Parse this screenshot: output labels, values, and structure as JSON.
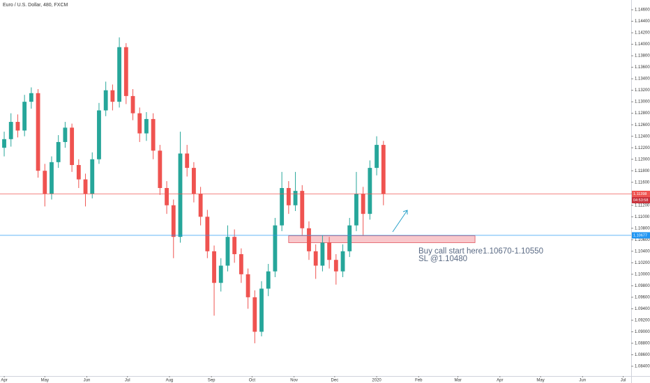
{
  "chart_data": {
    "type": "candlestick",
    "title": "Euro / U.S. Dollar, 480, FXCM",
    "x": [
      0,
      5,
      10,
      15,
      20,
      25,
      30,
      35,
      40,
      45,
      50,
      55,
      60,
      65,
      70,
      75,
      80,
      85,
      90,
      95,
      100,
      105,
      110,
      115,
      120,
      125,
      130,
      135,
      140,
      145,
      150,
      155,
      160,
      165,
      170,
      175,
      180,
      185,
      190,
      195,
      200,
      205,
      210,
      215,
      220,
      225,
      230,
      235,
      240,
      245,
      250,
      255,
      260,
      265,
      270,
      275,
      280
    ],
    "open": [
      1.122,
      1.1235,
      1.1265,
      1.125,
      1.13,
      1.1315,
      1.118,
      1.114,
      1.1195,
      1.123,
      1.1255,
      1.119,
      1.1165,
      1.114,
      1.12,
      1.1285,
      1.132,
      1.13,
      1.1395,
      1.131,
      1.128,
      1.1245,
      1.127,
      1.1215,
      1.115,
      1.112,
      1.1065,
      1.121,
      1.1185,
      1.114,
      1.11,
      1.104,
      1.0985,
      1.1015,
      1.1065,
      1.1035,
      1.1,
      1.096,
      1.09,
      1.0975,
      1.1005,
      1.1085,
      1.115,
      1.112,
      1.1145,
      1.108,
      1.104,
      1.1015,
      1.1055,
      1.1025,
      1.1005,
      1.104,
      1.1085,
      1.114,
      1.1105,
      1.1185,
      1.1225
    ],
    "high": [
      1.1248,
      1.128,
      1.1278,
      1.1312,
      1.1325,
      1.1322,
      1.1192,
      1.1205,
      1.1242,
      1.1265,
      1.1262,
      1.12,
      1.1175,
      1.1212,
      1.1298,
      1.1335,
      1.133,
      1.1412,
      1.1402,
      1.1322,
      1.129,
      1.1282,
      1.128,
      1.1225,
      1.1162,
      1.113,
      1.1248,
      1.1225,
      1.1195,
      1.1152,
      1.1112,
      1.105,
      1.1028,
      1.1085,
      1.1078,
      1.1045,
      1.101,
      1.0972,
      1.0988,
      1.1018,
      1.1098,
      1.1178,
      1.1162,
      1.1178,
      1.1155,
      1.1092,
      1.1052,
      1.1068,
      1.1065,
      1.1035,
      1.1052,
      1.1098,
      1.1178,
      1.1152,
      1.1198,
      1.124,
      1.1232
    ],
    "low": [
      1.1205,
      1.1222,
      1.1238,
      1.124,
      1.1288,
      1.1168,
      1.1118,
      1.113,
      1.1185,
      1.122,
      1.1178,
      1.115,
      1.1118,
      1.1132,
      1.1192,
      1.1275,
      1.1285,
      1.129,
      1.1296,
      1.1268,
      1.123,
      1.1232,
      1.12,
      1.1138,
      1.1105,
      1.1028,
      1.1055,
      1.117,
      1.1125,
      1.1085,
      1.1028,
      1.0928,
      1.097,
      1.1005,
      1.102,
      1.0985,
      1.094,
      1.088,
      1.0892,
      1.0962,
      1.0995,
      1.1075,
      1.1105,
      1.111,
      1.1068,
      1.1025,
      1.0992,
      1.1005,
      1.101,
      1.0982,
      1.0995,
      1.103,
      1.1075,
      1.1068,
      1.1095,
      1.1172,
      1.112
    ],
    "close": [
      1.1235,
      1.1265,
      1.125,
      1.13,
      1.1315,
      1.118,
      1.114,
      1.1195,
      1.123,
      1.1255,
      1.119,
      1.1165,
      1.114,
      1.12,
      1.1285,
      1.132,
      1.13,
      1.1395,
      1.131,
      1.128,
      1.1245,
      1.127,
      1.1215,
      1.115,
      1.112,
      1.1065,
      1.121,
      1.1185,
      1.114,
      1.11,
      1.104,
      1.0985,
      1.1015,
      1.1065,
      1.1035,
      1.1,
      1.096,
      1.09,
      1.0975,
      1.1005,
      1.1085,
      1.115,
      1.112,
      1.1145,
      1.108,
      1.104,
      1.1015,
      1.1055,
      1.1025,
      1.1005,
      1.104,
      1.1085,
      1.114,
      1.1105,
      1.1185,
      1.1225,
      1.114
    ],
    "up_color": "#26a69a",
    "down_color": "#ef5350",
    "xlim": [
      -3.1,
      462.9
    ],
    "ylim": [
      1.0823,
      1.1477
    ],
    "grid": false,
    "xticks": [
      {
        "value": 0,
        "label": "Apr"
      },
      {
        "value": 30,
        "label": "May"
      },
      {
        "value": 61,
        "label": "Jun"
      },
      {
        "value": 91,
        "label": "Jul"
      },
      {
        "value": 122,
        "label": "Aug"
      },
      {
        "value": 153,
        "label": "Sep"
      },
      {
        "value": 183,
        "label": "Oct"
      },
      {
        "value": 214,
        "label": "Nov"
      },
      {
        "value": 244,
        "label": "Dec"
      },
      {
        "value": 275,
        "label": "2020"
      },
      {
        "value": 306,
        "label": "Feb"
      },
      {
        "value": 335,
        "label": "Mar"
      },
      {
        "value": 366,
        "label": "Apr"
      },
      {
        "value": 396,
        "label": "May"
      },
      {
        "value": 427,
        "label": "Jun"
      },
      {
        "value": 457,
        "label": "Jul"
      }
    ],
    "yticks": [
      {
        "value": 1.084,
        "label": "1.08400"
      },
      {
        "value": 1.086,
        "label": "1.08600"
      },
      {
        "value": 1.088,
        "label": "1.08800"
      },
      {
        "value": 1.09,
        "label": "1.09000"
      },
      {
        "value": 1.092,
        "label": "1.09200"
      },
      {
        "value": 1.094,
        "label": "1.09400"
      },
      {
        "value": 1.096,
        "label": "1.09600"
      },
      {
        "value": 1.098,
        "label": "1.09800"
      },
      {
        "value": 1.1,
        "label": "1.10000"
      },
      {
        "value": 1.102,
        "label": "1.10200"
      },
      {
        "value": 1.104,
        "label": "1.10400"
      },
      {
        "value": 1.106,
        "label": "1.10600"
      },
      {
        "value": 1.108,
        "label": "1.10800"
      },
      {
        "value": 1.11,
        "label": "1.11000"
      },
      {
        "value": 1.112,
        "label": "1.11200"
      },
      {
        "value": 1.114,
        "label": "1.11400"
      },
      {
        "value": 1.116,
        "label": "1.11600"
      },
      {
        "value": 1.118,
        "label": "1.11800"
      },
      {
        "value": 1.12,
        "label": "1.12000"
      },
      {
        "value": 1.122,
        "label": "1.12200"
      },
      {
        "value": 1.124,
        "label": "1.12400"
      },
      {
        "value": 1.126,
        "label": "1.12600"
      },
      {
        "value": 1.128,
        "label": "1.12800"
      },
      {
        "value": 1.13,
        "label": "1.13000"
      },
      {
        "value": 1.132,
        "label": "1.13200"
      },
      {
        "value": 1.134,
        "label": "1.13400"
      },
      {
        "value": 1.136,
        "label": "1.13600"
      },
      {
        "value": 1.138,
        "label": "1.13800"
      },
      {
        "value": 1.14,
        "label": "1.14000"
      },
      {
        "value": 1.142,
        "label": "1.14200"
      },
      {
        "value": 1.144,
        "label": "1.14400"
      },
      {
        "value": 1.146,
        "label": "1.14600"
      }
    ],
    "price_lines": [
      {
        "value": 1.11398,
        "color": "#ef5350",
        "countdown": "04:53:58"
      },
      {
        "value": 1.10677,
        "color": "#2196f3"
      }
    ],
    "zone": {
      "top": 1.1067,
      "bottom": 1.1055,
      "x": [
        210,
        347.6
      ],
      "color": "#f8c8cc",
      "border": "#e0505a"
    },
    "annotation": [
      "Buy call start here1.10670-1.10550",
      "SL @1.10480"
    ]
  }
}
